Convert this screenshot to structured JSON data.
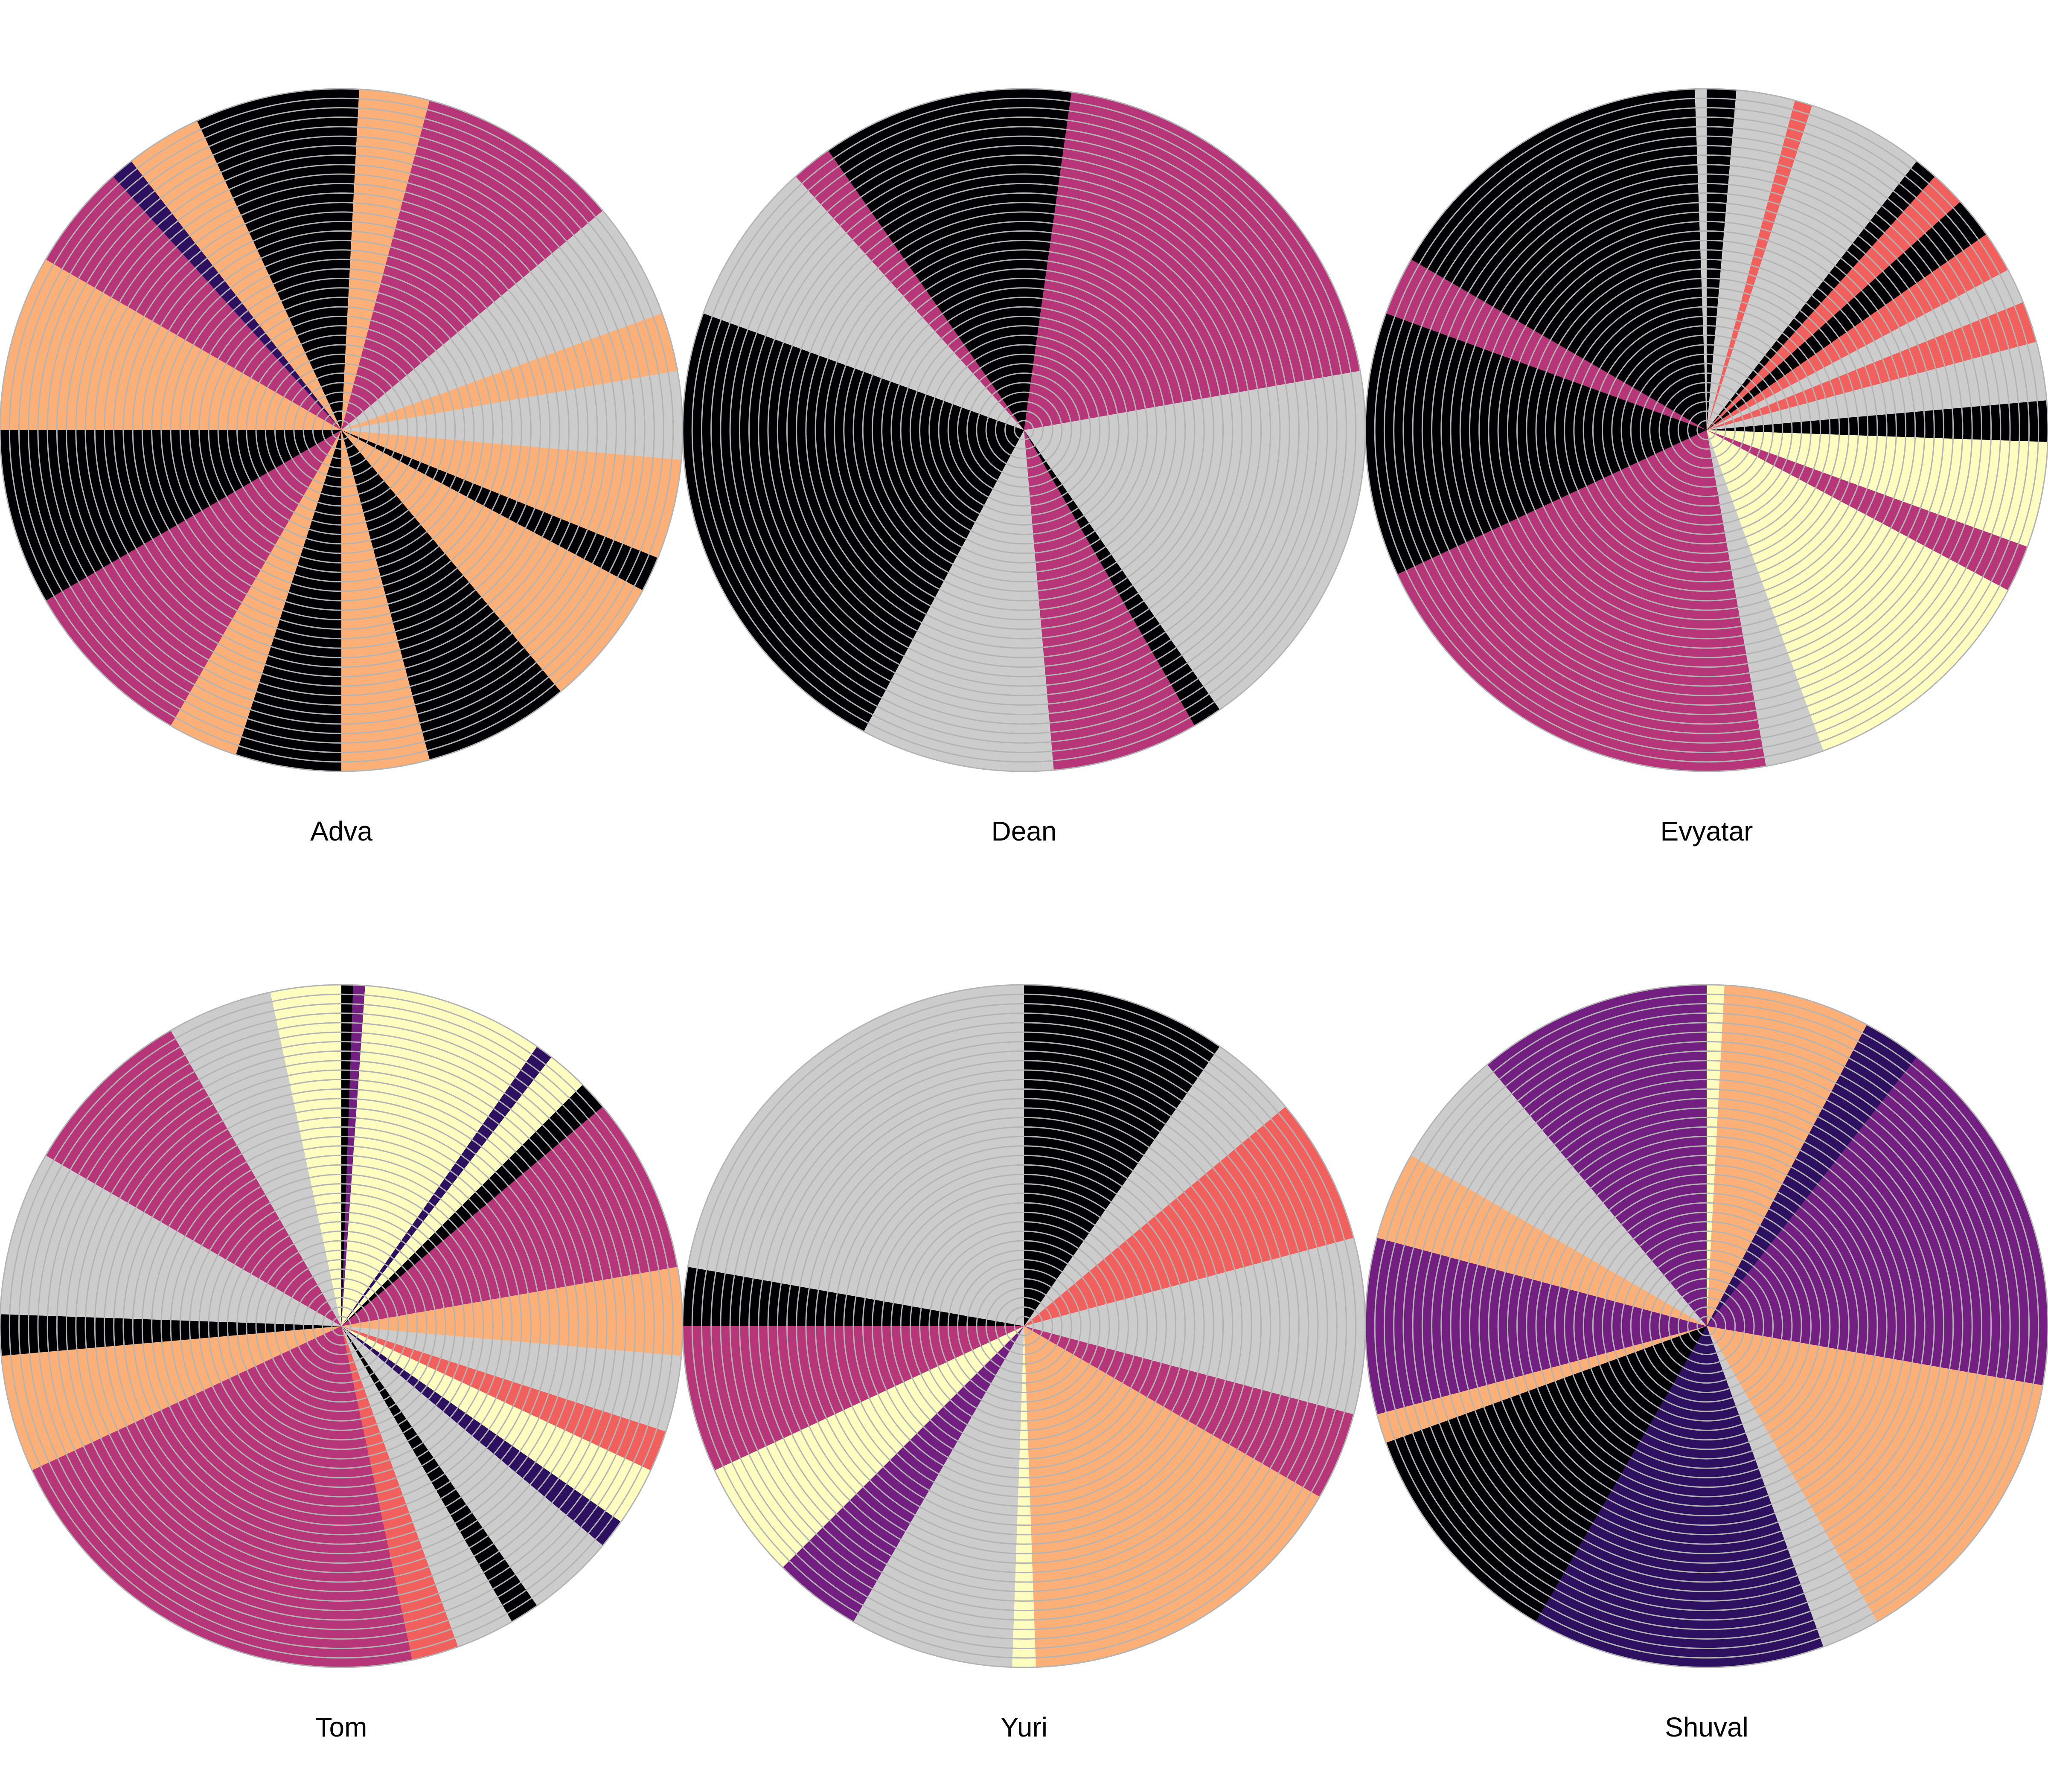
{
  "chart_data": [
    {
      "type": "radial",
      "title": "Adva",
      "ring_color": "#cccccc",
      "segments": [
        {
          "start": 0,
          "end": 3,
          "color": "#000004"
        },
        {
          "start": 3,
          "end": 15,
          "color": "#fcb077"
        },
        {
          "start": 15,
          "end": 50,
          "color": "#b63679"
        },
        {
          "start": 50,
          "end": 70,
          "color": "#cccccc"
        },
        {
          "start": 70,
          "end": 80,
          "color": "#fcb077"
        },
        {
          "start": 80,
          "end": 95,
          "color": "#cccccc"
        },
        {
          "start": 95,
          "end": 112,
          "color": "#fcb077"
        },
        {
          "start": 112,
          "end": 118,
          "color": "#000004"
        },
        {
          "start": 118,
          "end": 140,
          "color": "#fcb077"
        },
        {
          "start": 140,
          "end": 165,
          "color": "#000004"
        },
        {
          "start": 165,
          "end": 180,
          "color": "#fcb077"
        },
        {
          "start": 180,
          "end": 198,
          "color": "#000004"
        },
        {
          "start": 198,
          "end": 210,
          "color": "#fcb077"
        },
        {
          "start": 210,
          "end": 240,
          "color": "#b63679"
        },
        {
          "start": 240,
          "end": 270,
          "color": "#000004"
        },
        {
          "start": 270,
          "end": 300,
          "color": "#fcb077"
        },
        {
          "start": 300,
          "end": 318,
          "color": "#b63679"
        },
        {
          "start": 318,
          "end": 322,
          "color": "#2d1160"
        },
        {
          "start": 322,
          "end": 335,
          "color": "#fcb077"
        },
        {
          "start": 335,
          "end": 360,
          "color": "#000004"
        }
      ]
    },
    {
      "type": "radial",
      "title": "Dean",
      "ring_color": "#cccccc",
      "segments": [
        {
          "start": 0,
          "end": 8,
          "color": "#000004"
        },
        {
          "start": 8,
          "end": 80,
          "color": "#b63679"
        },
        {
          "start": 80,
          "end": 145,
          "color": "#cccccc"
        },
        {
          "start": 145,
          "end": 150,
          "color": "#000004"
        },
        {
          "start": 150,
          "end": 175,
          "color": "#b63679"
        },
        {
          "start": 175,
          "end": 208,
          "color": "#cccccc"
        },
        {
          "start": 208,
          "end": 290,
          "color": "#000004"
        },
        {
          "start": 290,
          "end": 318,
          "color": "#cccccc"
        },
        {
          "start": 318,
          "end": 325,
          "color": "#b63679"
        },
        {
          "start": 325,
          "end": 360,
          "color": "#000004"
        }
      ]
    },
    {
      "type": "radial",
      "title": "Evyatar",
      "ring_color": "#cccccc",
      "segments": [
        {
          "start": 0,
          "end": 5,
          "color": "#000004"
        },
        {
          "start": 5,
          "end": 15,
          "color": "#cccccc"
        },
        {
          "start": 15,
          "end": 18,
          "color": "#f1605d"
        },
        {
          "start": 18,
          "end": 38,
          "color": "#cccccc"
        },
        {
          "start": 38,
          "end": 42,
          "color": "#000004"
        },
        {
          "start": 42,
          "end": 48,
          "color": "#f1605d"
        },
        {
          "start": 48,
          "end": 55,
          "color": "#000004"
        },
        {
          "start": 55,
          "end": 62,
          "color": "#f1605d"
        },
        {
          "start": 62,
          "end": 68,
          "color": "#cccccc"
        },
        {
          "start": 68,
          "end": 75,
          "color": "#f1605d"
        },
        {
          "start": 75,
          "end": 85,
          "color": "#cccccc"
        },
        {
          "start": 85,
          "end": 92,
          "color": "#000004"
        },
        {
          "start": 92,
          "end": 110,
          "color": "#fcfdbf"
        },
        {
          "start": 110,
          "end": 118,
          "color": "#b63679"
        },
        {
          "start": 118,
          "end": 160,
          "color": "#fcfdbf"
        },
        {
          "start": 160,
          "end": 170,
          "color": "#cccccc"
        },
        {
          "start": 170,
          "end": 245,
          "color": "#b63679"
        },
        {
          "start": 245,
          "end": 290,
          "color": "#000004"
        },
        {
          "start": 290,
          "end": 300,
          "color": "#b63679"
        },
        {
          "start": 300,
          "end": 358,
          "color": "#000004"
        },
        {
          "start": 358,
          "end": 360,
          "color": "#cccccc"
        }
      ]
    },
    {
      "type": "radial",
      "title": "Tom",
      "ring_color": "#cccccc",
      "segments": [
        {
          "start": 0,
          "end": 2,
          "color": "#000004"
        },
        {
          "start": 2,
          "end": 4,
          "color": "#721f81"
        },
        {
          "start": 4,
          "end": 35,
          "color": "#fcfdbf"
        },
        {
          "start": 35,
          "end": 38,
          "color": "#2d1160"
        },
        {
          "start": 38,
          "end": 45,
          "color": "#fcfdbf"
        },
        {
          "start": 45,
          "end": 50,
          "color": "#000004"
        },
        {
          "start": 50,
          "end": 80,
          "color": "#b63679"
        },
        {
          "start": 80,
          "end": 95,
          "color": "#fcb077"
        },
        {
          "start": 95,
          "end": 108,
          "color": "#cccccc"
        },
        {
          "start": 108,
          "end": 115,
          "color": "#f1605d"
        },
        {
          "start": 115,
          "end": 125,
          "color": "#fcfdbf"
        },
        {
          "start": 125,
          "end": 130,
          "color": "#2d1160"
        },
        {
          "start": 130,
          "end": 145,
          "color": "#cccccc"
        },
        {
          "start": 145,
          "end": 150,
          "color": "#000004"
        },
        {
          "start": 150,
          "end": 160,
          "color": "#cccccc"
        },
        {
          "start": 160,
          "end": 168,
          "color": "#f1605d"
        },
        {
          "start": 168,
          "end": 245,
          "color": "#b63679"
        },
        {
          "start": 245,
          "end": 265,
          "color": "#fcb077"
        },
        {
          "start": 265,
          "end": 272,
          "color": "#000004"
        },
        {
          "start": 272,
          "end": 300,
          "color": "#cccccc"
        },
        {
          "start": 300,
          "end": 330,
          "color": "#b63679"
        },
        {
          "start": 330,
          "end": 348,
          "color": "#cccccc"
        },
        {
          "start": 348,
          "end": 360,
          "color": "#fcfdbf"
        }
      ]
    },
    {
      "type": "radial",
      "title": "Yuri",
      "ring_color": "#cccccc",
      "segments": [
        {
          "start": 0,
          "end": 35,
          "color": "#000004"
        },
        {
          "start": 35,
          "end": 50,
          "color": "#cccccc"
        },
        {
          "start": 50,
          "end": 75,
          "color": "#f1605d"
        },
        {
          "start": 75,
          "end": 105,
          "color": "#cccccc"
        },
        {
          "start": 105,
          "end": 120,
          "color": "#b63679"
        },
        {
          "start": 120,
          "end": 178,
          "color": "#fcb077"
        },
        {
          "start": 178,
          "end": 182,
          "color": "#fcfdbf"
        },
        {
          "start": 182,
          "end": 210,
          "color": "#cccccc"
        },
        {
          "start": 210,
          "end": 225,
          "color": "#721f81"
        },
        {
          "start": 225,
          "end": 245,
          "color": "#fcfdbf"
        },
        {
          "start": 245,
          "end": 270,
          "color": "#b63679"
        },
        {
          "start": 270,
          "end": 280,
          "color": "#000004"
        },
        {
          "start": 280,
          "end": 360,
          "color": "#cccccc"
        }
      ]
    },
    {
      "type": "radial",
      "title": "Shuval",
      "ring_color": "#cccccc",
      "segments": [
        {
          "start": 0,
          "end": 3,
          "color": "#fcfdbf"
        },
        {
          "start": 3,
          "end": 28,
          "color": "#fcb077"
        },
        {
          "start": 28,
          "end": 38,
          "color": "#2d1160"
        },
        {
          "start": 38,
          "end": 100,
          "color": "#721f81"
        },
        {
          "start": 100,
          "end": 150,
          "color": "#fcb077"
        },
        {
          "start": 150,
          "end": 160,
          "color": "#cccccc"
        },
        {
          "start": 160,
          "end": 210,
          "color": "#2d1160"
        },
        {
          "start": 210,
          "end": 250,
          "color": "#000004"
        },
        {
          "start": 250,
          "end": 255,
          "color": "#fcb077"
        },
        {
          "start": 255,
          "end": 285,
          "color": "#721f81"
        },
        {
          "start": 285,
          "end": 300,
          "color": "#fcb077"
        },
        {
          "start": 300,
          "end": 320,
          "color": "#cccccc"
        },
        {
          "start": 320,
          "end": 360,
          "color": "#721f81"
        }
      ]
    }
  ]
}
